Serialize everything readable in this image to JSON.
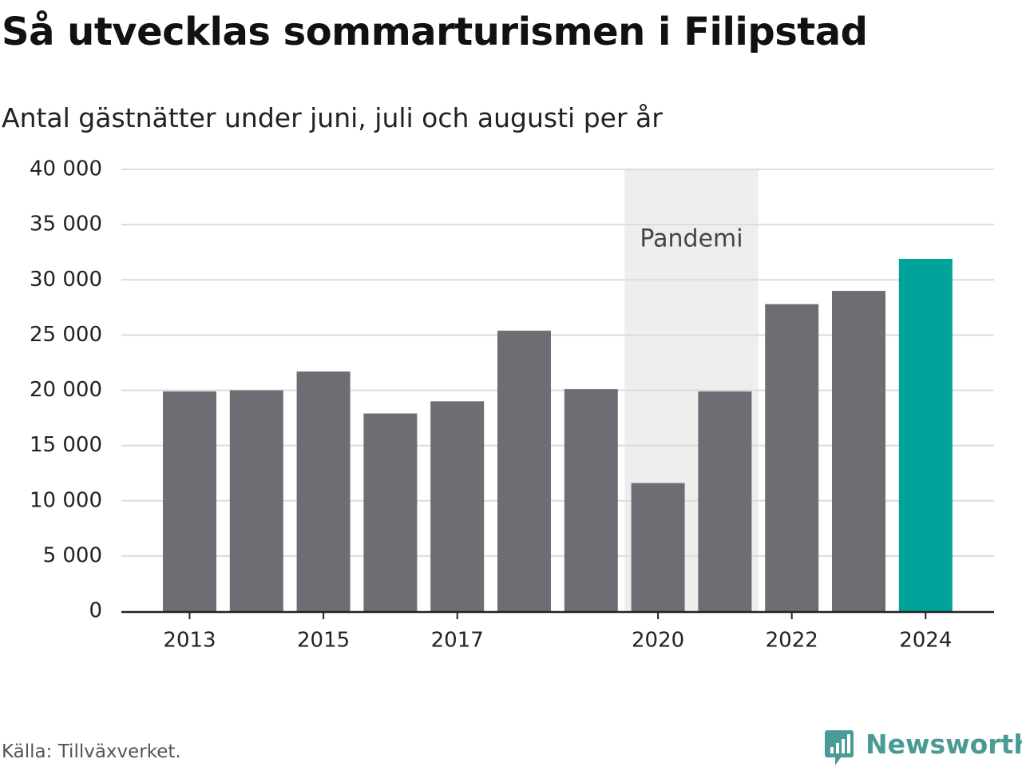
{
  "chart_data": {
    "type": "bar",
    "title": "Så utvecklas sommarturismen i Filipstad",
    "subtitle": "Antal gästnätter under juni, juli och augusti per år",
    "xlabel": "",
    "ylabel": "",
    "categories": [
      "2013",
      "2014",
      "2015",
      "2016",
      "2017",
      "2018",
      "2019",
      "2020",
      "2021",
      "2022",
      "2023",
      "2024"
    ],
    "values": [
      19900,
      20000,
      21700,
      17900,
      19000,
      25400,
      20100,
      11600,
      19900,
      27800,
      29000,
      31900
    ],
    "x_tick_labels": [
      "2013",
      "2015",
      "2017",
      "2020",
      "2022",
      "2024"
    ],
    "ylim": [
      0,
      40000
    ],
    "y_ticks": [
      0,
      5000,
      10000,
      15000,
      20000,
      25000,
      30000,
      35000,
      40000
    ],
    "y_tick_labels": [
      "0",
      "5 000",
      "10 000",
      "15 000",
      "20 000",
      "25 000",
      "30 000",
      "35 000",
      "40 000"
    ],
    "grid": true,
    "legend": "none",
    "highlight": {
      "category": "2024",
      "color": "#00a39a"
    },
    "bar_color": "#6e6d74",
    "annotation": {
      "label": "Pandemi",
      "from": "2020",
      "to": "2021",
      "color": "#eeeeee"
    }
  },
  "source": "Källa: Tillväxverket.",
  "brand": {
    "name": "Newsworthy",
    "icon": "newsworthy-logo-icon",
    "color": "#4a9a95"
  }
}
